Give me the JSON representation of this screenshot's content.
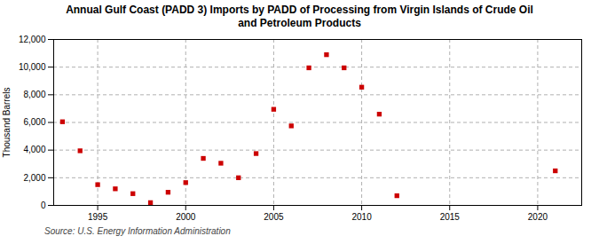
{
  "chart_data": {
    "type": "scatter",
    "title": "Annual Gulf Coast (PADD 3) Imports by PADD of Processing from Virgin Islands of Crude Oil\nand Petroleum Products",
    "ylabel": "Thousand Barrels",
    "source": "Source: U.S. Energy Information Administration",
    "x": [
      1993,
      1994,
      1995,
      1996,
      1997,
      1998,
      1999,
      2000,
      2001,
      2002,
      2003,
      2004,
      2005,
      2006,
      2007,
      2008,
      2009,
      2010,
      2011,
      2012,
      2021
    ],
    "values": [
      6050,
      3950,
      1500,
      1200,
      850,
      200,
      950,
      1650,
      3400,
      3050,
      2000,
      3750,
      6950,
      5750,
      9950,
      10900,
      9950,
      8550,
      6600,
      700,
      2500
    ],
    "color": "#cc0000",
    "marker": "square",
    "xlim": [
      1992.5,
      2022.5
    ],
    "ylim": [
      0,
      12000
    ],
    "xticks": [
      1995,
      2000,
      2005,
      2010,
      2015,
      2020
    ],
    "yticks": [
      0,
      {
        "value": 2000,
        "label": "2,000"
      },
      {
        "value": 4000,
        "label": "4,000"
      },
      {
        "value": 6000,
        "label": "6,000"
      },
      {
        "value": 8000,
        "label": "8,000"
      },
      {
        "value": 10000,
        "label": "10,000"
      },
      {
        "value": 12000,
        "label": "12,000"
      }
    ],
    "grid": true
  }
}
